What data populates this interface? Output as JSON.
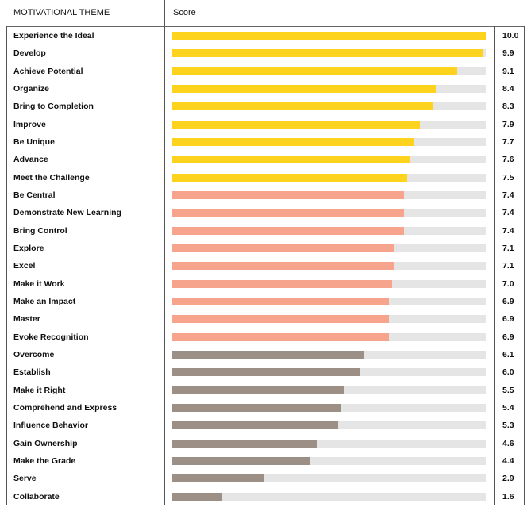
{
  "header": {
    "theme_label": "MOTIVATIONAL THEME",
    "score_label": "Score"
  },
  "colors": {
    "top": "#fdd31d",
    "middle": "#f7a48c",
    "bottom": "#9b8f86",
    "track": "#e5e5e5"
  },
  "chart_data": {
    "type": "bar",
    "orientation": "horizontal",
    "xlim": [
      0,
      10
    ],
    "grid": false,
    "categories": [
      "Experience the Ideal",
      "Develop",
      "Achieve Potential",
      "Organize",
      "Bring to Completion",
      "Improve",
      "Be Unique",
      "Advance",
      "Meet the Challenge",
      "Be Central",
      "Demonstrate New Learning",
      "Bring Control",
      "Explore",
      "Excel",
      "Make it Work",
      "Make an Impact",
      "Master",
      "Evoke Recognition",
      "Overcome",
      "Establish",
      "Make it Right",
      "Comprehend and Express",
      "Influence Behavior",
      "Gain Ownership",
      "Make the Grade",
      "Serve",
      "Collaborate"
    ],
    "values": [
      10.0,
      9.9,
      9.1,
      8.4,
      8.3,
      7.9,
      7.7,
      7.6,
      7.5,
      7.4,
      7.4,
      7.4,
      7.1,
      7.1,
      7.0,
      6.9,
      6.9,
      6.9,
      6.1,
      6.0,
      5.5,
      5.4,
      5.3,
      4.6,
      4.4,
      2.9,
      1.6
    ],
    "value_labels": [
      "10.0",
      "9.9",
      "9.1",
      "8.4",
      "8.3",
      "7.9",
      "7.7",
      "7.6",
      "7.5",
      "7.4",
      "7.4",
      "7.4",
      "7.1",
      "7.1",
      "7.0",
      "6.9",
      "6.9",
      "6.9",
      "6.1",
      "6.0",
      "5.5",
      "5.4",
      "5.3",
      "4.6",
      "4.4",
      "2.9",
      "1.6"
    ],
    "groups": [
      "top",
      "top",
      "top",
      "top",
      "top",
      "top",
      "top",
      "top",
      "top",
      "middle",
      "middle",
      "middle",
      "middle",
      "middle",
      "middle",
      "middle",
      "middle",
      "middle",
      "bottom",
      "bottom",
      "bottom",
      "bottom",
      "bottom",
      "bottom",
      "bottom",
      "bottom",
      "bottom"
    ]
  }
}
